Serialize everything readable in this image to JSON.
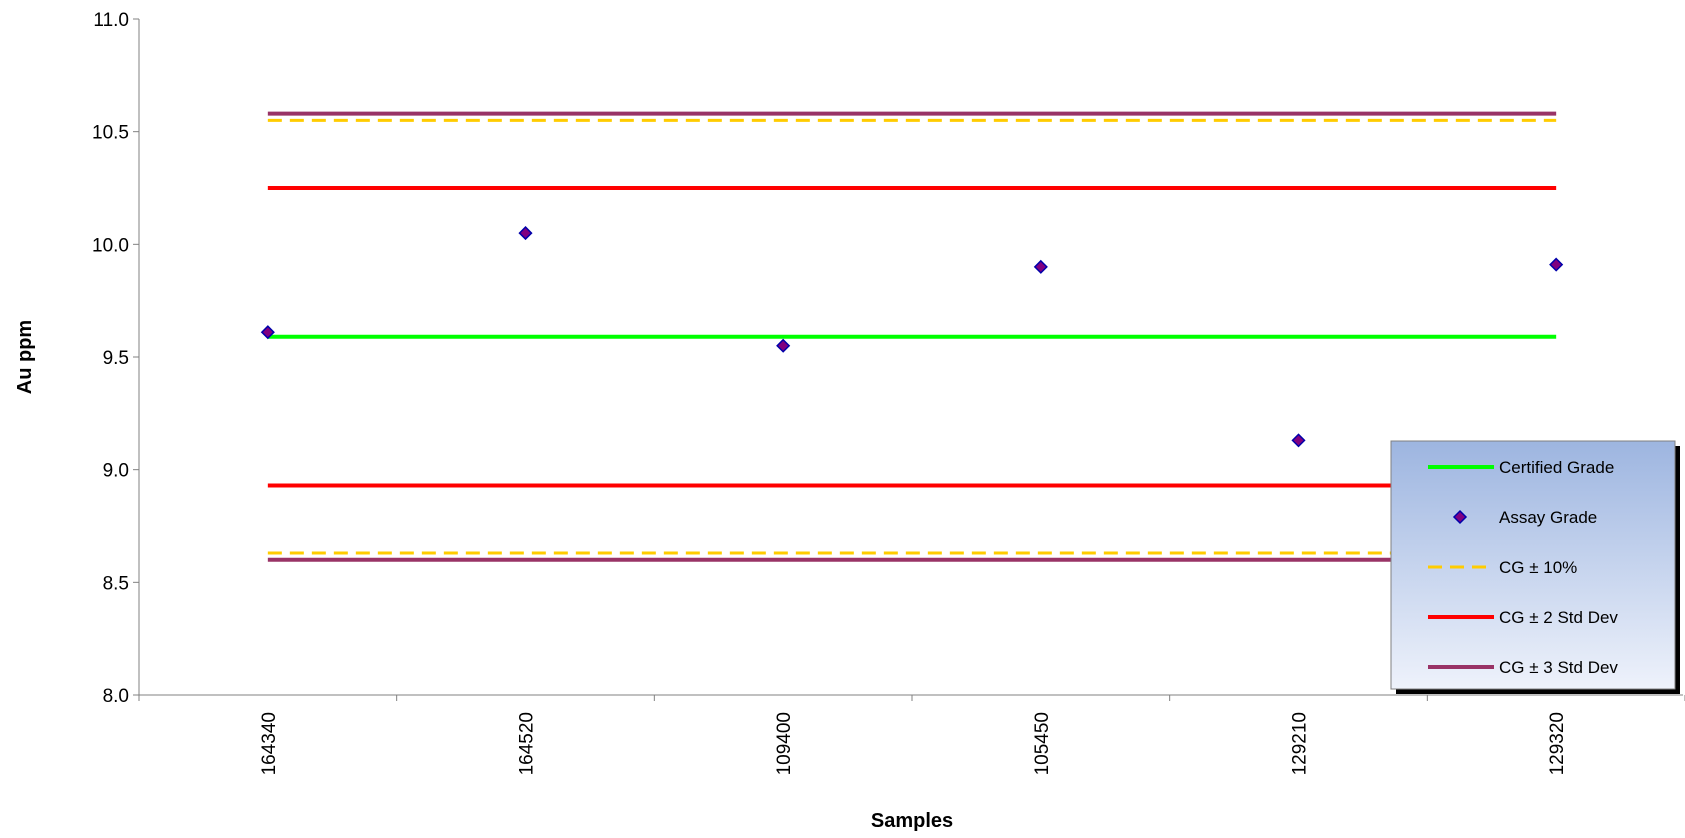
{
  "chart_data": {
    "type": "scatter",
    "xlabel": "Samples",
    "ylabel": "Au ppm",
    "ylim": [
      8.0,
      11.0
    ],
    "yticks": [
      "8.0",
      "8.5",
      "9.0",
      "9.5",
      "10.0",
      "10.5",
      "11.0"
    ],
    "categories": [
      "164340",
      "164520",
      "109400",
      "105450",
      "129210",
      "129320"
    ],
    "grid": false,
    "legend_position": "bottom-right",
    "series": [
      {
        "name": "Certified Grade",
        "kind": "line",
        "color": "#00ff00",
        "dashed": false,
        "values": [
          9.59,
          9.59,
          9.59,
          9.59,
          9.59,
          9.59
        ]
      },
      {
        "name": "Assay Grade",
        "kind": "points",
        "marker": "diamond",
        "color": "#800080",
        "values": [
          9.61,
          10.05,
          9.55,
          9.9,
          9.13,
          9.91
        ]
      },
      {
        "name": "CG ± 10%",
        "kind": "line",
        "color": "#ffcc00",
        "dashed": true,
        "values": [
          10.55,
          10.55,
          10.55,
          10.55,
          10.55,
          10.55
        ],
        "values_lower": [
          8.63,
          8.63,
          8.63,
          8.63,
          8.63,
          8.63
        ]
      },
      {
        "name": "CG ± 2 Std Dev",
        "kind": "line",
        "color": "#ff0000",
        "dashed": false,
        "values": [
          10.25,
          10.25,
          10.25,
          10.25,
          10.25,
          10.25
        ],
        "values_lower": [
          8.93,
          8.93,
          8.93,
          8.93,
          8.93,
          8.93
        ]
      },
      {
        "name": "CG ± 3 Std Dev",
        "kind": "line",
        "color": "#993366",
        "dashed": false,
        "values": [
          10.58,
          10.58,
          10.58,
          10.58,
          10.58,
          10.58
        ],
        "values_lower": [
          8.6,
          8.6,
          8.6,
          8.6,
          8.6,
          8.6
        ]
      }
    ]
  }
}
